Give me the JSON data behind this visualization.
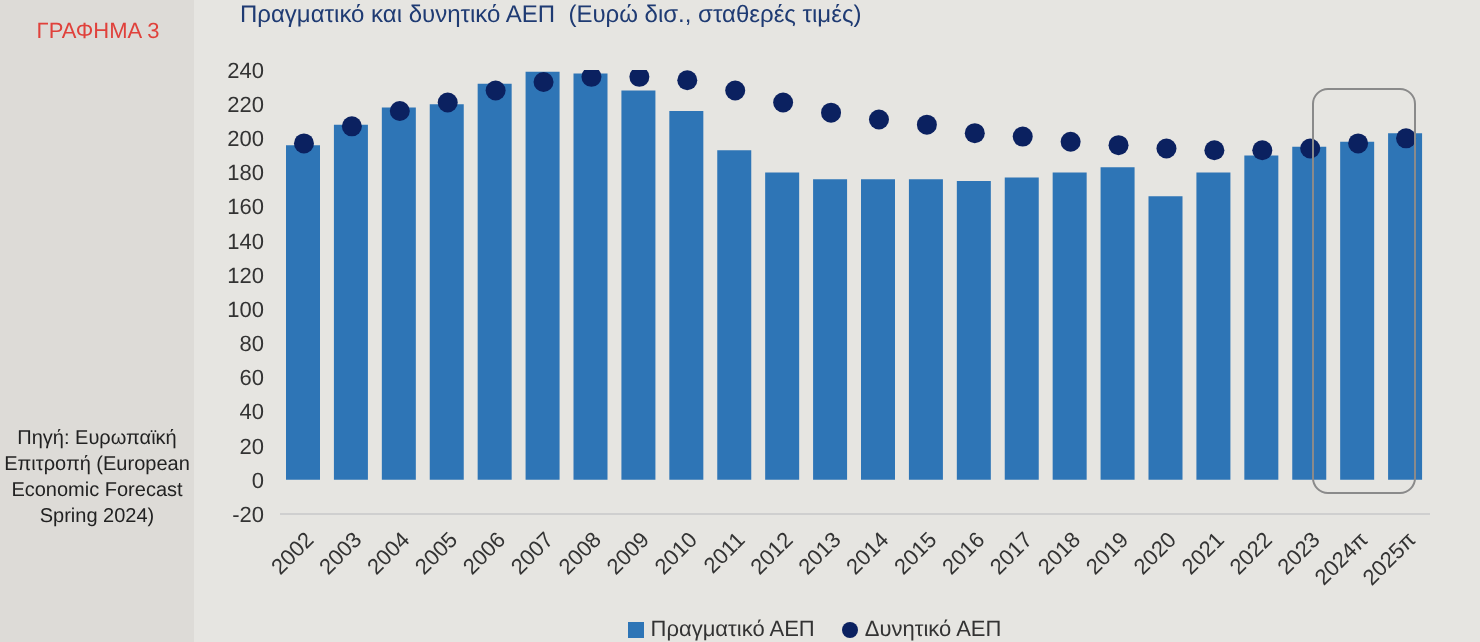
{
  "chart_data": {
    "type": "bar",
    "title": "Πραγματικό και δυνητικό ΑΕΠ  (Ευρώ δισ., σταθερές τιμές)",
    "annotations": [
      "ΓΡΑΦΗΜΑ 3",
      "Πηγή: Ευρωπαϊκή Επιτροπή (European Economic Forecast Spring 2024)"
    ],
    "categories": [
      "2002",
      "2003",
      "2004",
      "2005",
      "2006",
      "2007",
      "2008",
      "2009",
      "2010",
      "2011",
      "2012",
      "2013",
      "2014",
      "2015",
      "2016",
      "2017",
      "2018",
      "2019",
      "2020",
      "2021",
      "2022",
      "2023",
      "2024π",
      "2025π"
    ],
    "series": [
      {
        "name": "Πραγματικό ΑΕΠ",
        "color": "#2e75b6",
        "values": [
          196,
          208,
          218,
          220,
          232,
          239,
          238,
          228,
          216,
          193,
          180,
          176,
          176,
          176,
          175,
          177,
          180,
          183,
          166,
          180,
          190,
          195,
          198,
          203
        ]
      },
      {
        "name": "Δυνητικό ΑΕΠ",
        "type": "scatter",
        "color": "#0b2160",
        "marker": "circle",
        "values": [
          197,
          207,
          216,
          221,
          228,
          233,
          236,
          236,
          234,
          228,
          221,
          215,
          211,
          208,
          203,
          201,
          198,
          196,
          194,
          193,
          193,
          194,
          197,
          200
        ]
      }
    ],
    "ylim": [
      -20,
      240
    ],
    "yticks": [
      -20,
      0,
      20,
      40,
      60,
      80,
      100,
      120,
      140,
      160,
      180,
      200,
      220,
      240
    ],
    "grid": false,
    "legend": "bottom"
  }
}
